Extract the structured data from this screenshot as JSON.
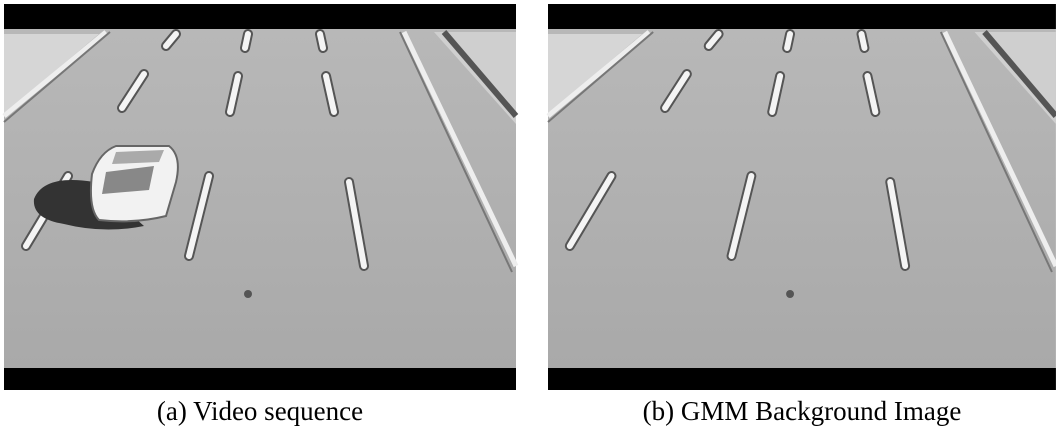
{
  "figures": [
    {
      "caption": "(a) Video sequence"
    },
    {
      "caption": "(b) GMM Background Image"
    }
  ]
}
